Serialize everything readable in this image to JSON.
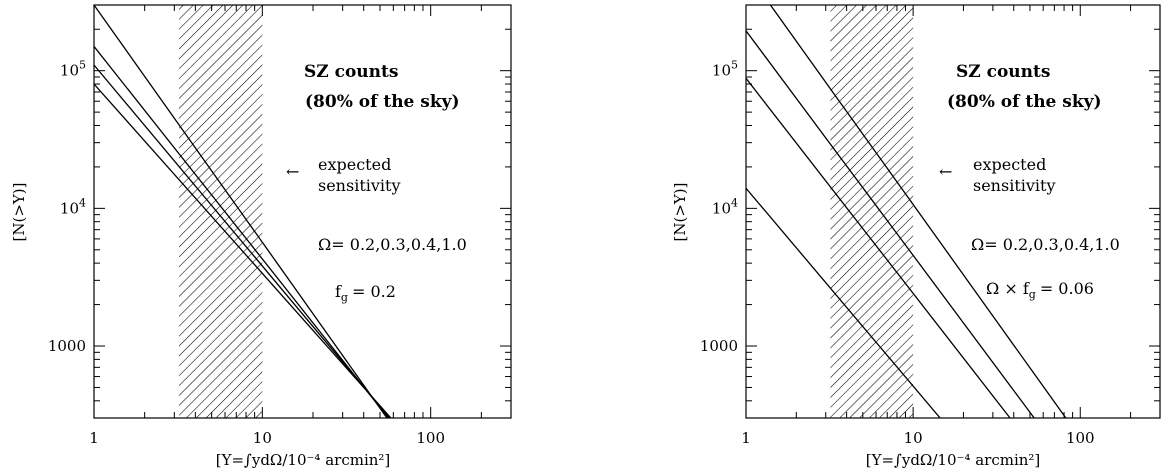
{
  "chart_data": [
    {
      "type": "line",
      "scale": {
        "x": "log",
        "y": "log"
      },
      "xlim": [
        1,
        300
      ],
      "ylim": [
        300,
        300000
      ],
      "xticks": [
        1,
        10,
        100
      ],
      "xtick_labels": [
        "1",
        "10",
        "100"
      ],
      "yticks": [
        100000,
        10000,
        1000
      ],
      "ytick_labels": [
        "10^5",
        "10^4",
        "1000"
      ],
      "xlabel": "[Y=∫ydΩ/10⁻⁴ arcmin²]",
      "ylabel": "[N(>Y)]",
      "shaded_band": {
        "x": [
          3.2,
          10
        ],
        "pattern": "hatched"
      },
      "series": [
        {
          "x": [
            1,
            55
          ],
          "y": [
            300000,
            300
          ]
        },
        {
          "x": [
            1,
            56
          ],
          "y": [
            150000,
            300
          ]
        },
        {
          "x": [
            1,
            57
          ],
          "y": [
            110000,
            300
          ]
        },
        {
          "x": [
            1,
            58
          ],
          "y": [
            80000,
            300
          ]
        }
      ],
      "annotations": {
        "title_line1": "SZ counts",
        "title_line2": "(80% of the sky)",
        "arrow": "←",
        "sensitivity_line1": "expected",
        "sensitivity_line2": "sensitivity",
        "omega_text": "Ω=  0.2,0.3,0.4,1.0",
        "param_prefix": "f",
        "param_sub": "g",
        "param_value": "=  0.2"
      }
    },
    {
      "type": "line",
      "scale": {
        "x": "log",
        "y": "log"
      },
      "xlim": [
        1,
        300
      ],
      "ylim": [
        300,
        300000
      ],
      "xticks": [
        1,
        10,
        100
      ],
      "xtick_labels": [
        "1",
        "10",
        "100"
      ],
      "yticks": [
        100000,
        10000,
        1000
      ],
      "ytick_labels": [
        "10^5",
        "10^4",
        "1000"
      ],
      "xlabel": "[Y=∫ydΩ/10⁻⁴ arcmin²]",
      "ylabel": "[N(>Y)]",
      "shaded_band": {
        "x": [
          3.2,
          10
        ],
        "pattern": "hatched"
      },
      "series": [
        {
          "x": [
            1.4,
            82
          ],
          "y": [
            300000,
            300
          ]
        },
        {
          "x": [
            1,
            53
          ],
          "y": [
            195000,
            300
          ]
        },
        {
          "x": [
            1,
            38
          ],
          "y": [
            88000,
            300
          ]
        },
        {
          "x": [
            1,
            14.5
          ],
          "y": [
            14000,
            300
          ]
        }
      ],
      "annotations": {
        "title_line1": "SZ counts",
        "title_line2": "(80% of the sky)",
        "arrow": "←",
        "sensitivity_line1": "expected",
        "sensitivity_line2": "sensitivity",
        "omega_text": "Ω=  0.2,0.3,0.4,1.0",
        "param_prefix": "Ω × f",
        "param_sub": "g",
        "param_value": "=  0.06"
      }
    }
  ]
}
